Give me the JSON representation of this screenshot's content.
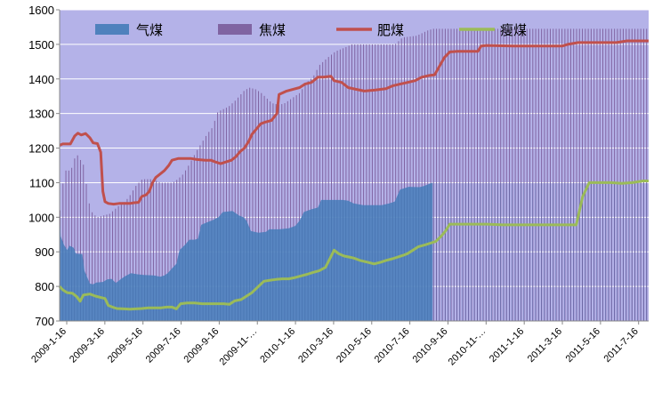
{
  "chart_data": {
    "type": "area",
    "title": "",
    "xlabel": "",
    "ylabel": "",
    "ylim": [
      700,
      1600
    ],
    "yticks": [
      700,
      800,
      900,
      1000,
      1100,
      1200,
      1300,
      1400,
      1500,
      1600
    ],
    "grid": "horizontal",
    "legend_position": "top",
    "plot_background": "#B4B2E8",
    "x_tick_labels": [
      "2009-1-16",
      "2009-3-16",
      "2009-5-16",
      "2009-7-16",
      "2009-9-16",
      "2009-11-…",
      "2010-1-16",
      "2010-3-16",
      "2010-5-16",
      "2010-7-16",
      "2010-9-16",
      "2010-11-…",
      "2011-1-16",
      "2011-3-16",
      "2011-5-16",
      "2011-7-16"
    ],
    "series": [
      {
        "name": "气煤",
        "kind": "area",
        "color": "#4F81BD",
        "points": [
          [
            0,
            1010
          ],
          [
            1,
            945
          ],
          [
            4,
            920
          ],
          [
            7,
            905
          ],
          [
            9,
            918
          ],
          [
            13,
            912
          ],
          [
            15,
            895
          ],
          [
            21,
            893
          ],
          [
            23,
            845
          ],
          [
            25,
            830
          ],
          [
            28,
            808
          ],
          [
            31,
            806
          ],
          [
            34,
            811
          ],
          [
            40,
            813
          ],
          [
            44,
            820
          ],
          [
            48,
            822
          ],
          [
            52,
            810
          ],
          [
            57,
            822
          ],
          [
            61,
            830
          ],
          [
            66,
            838
          ],
          [
            72,
            835
          ],
          [
            78,
            833
          ],
          [
            87,
            832
          ],
          [
            93,
            828
          ],
          [
            97,
            832
          ],
          [
            100,
            838
          ],
          [
            104,
            852
          ],
          [
            108,
            865
          ],
          [
            111,
            905
          ],
          [
            116,
            920
          ],
          [
            120,
            935
          ],
          [
            125,
            935
          ],
          [
            128,
            938
          ],
          [
            131,
            978
          ],
          [
            136,
            985
          ],
          [
            142,
            992
          ],
          [
            147,
            1000
          ],
          [
            151,
            1015
          ],
          [
            160,
            1018
          ],
          [
            166,
            1005
          ],
          [
            170,
            1000
          ],
          [
            173,
            990
          ],
          [
            177,
            960
          ],
          [
            184,
            955
          ],
          [
            191,
            958
          ],
          [
            194,
            965
          ],
          [
            203,
            965
          ],
          [
            212,
            968
          ],
          [
            218,
            975
          ],
          [
            222,
            990
          ],
          [
            226,
            1015
          ],
          [
            232,
            1022
          ],
          [
            239,
            1028
          ],
          [
            242,
            1050
          ],
          [
            249,
            1050
          ],
          [
            262,
            1050
          ],
          [
            267,
            1048
          ],
          [
            272,
            1040
          ],
          [
            281,
            1035
          ],
          [
            289,
            1035
          ],
          [
            298,
            1035
          ],
          [
            305,
            1040
          ],
          [
            310,
            1045
          ],
          [
            315,
            1080
          ],
          [
            323,
            1088
          ],
          [
            333,
            1087
          ],
          [
            337,
            1090
          ],
          [
            345,
            1100
          ]
        ]
      },
      {
        "name": "焦煤",
        "kind": "bars",
        "color": "#8064A2",
        "points": [
          [
            0,
            1020
          ],
          [
            4,
            1135
          ],
          [
            10,
            1135
          ],
          [
            14,
            1175
          ],
          [
            16,
            1180
          ],
          [
            22,
            1150
          ],
          [
            25,
            1080
          ],
          [
            28,
            1020
          ],
          [
            34,
            1000
          ],
          [
            46,
            1010
          ],
          [
            55,
            1035
          ],
          [
            60,
            1045
          ],
          [
            64,
            1060
          ],
          [
            70,
            1090
          ],
          [
            76,
            1110
          ],
          [
            86,
            1110
          ],
          [
            93,
            1100
          ],
          [
            98,
            1100
          ],
          [
            104,
            1100
          ],
          [
            109,
            1110
          ],
          [
            114,
            1125
          ],
          [
            119,
            1150
          ],
          [
            126,
            1190
          ],
          [
            131,
            1215
          ],
          [
            136,
            1240
          ],
          [
            141,
            1260
          ],
          [
            146,
            1305
          ],
          [
            156,
            1320
          ],
          [
            163,
            1340
          ],
          [
            170,
            1365
          ],
          [
            175,
            1375
          ],
          [
            181,
            1370
          ],
          [
            186,
            1360
          ],
          [
            196,
            1330
          ],
          [
            203,
            1325
          ],
          [
            208,
            1330
          ],
          [
            215,
            1345
          ],
          [
            222,
            1360
          ],
          [
            228,
            1390
          ],
          [
            234,
            1405
          ],
          [
            240,
            1440
          ],
          [
            247,
            1460
          ],
          [
            255,
            1480
          ],
          [
            263,
            1490
          ],
          [
            270,
            1500
          ],
          [
            279,
            1500
          ],
          [
            299,
            1500
          ],
          [
            310,
            1500
          ],
          [
            317,
            1520
          ],
          [
            330,
            1525
          ],
          [
            340,
            1540
          ],
          [
            345,
            1545
          ]
        ]
      },
      {
        "name": "肥煤",
        "kind": "line",
        "color": "#C0504D",
        "points": [
          [
            0,
            1208
          ],
          [
            3,
            1212
          ],
          [
            10,
            1212
          ],
          [
            14,
            1235
          ],
          [
            17,
            1243
          ],
          [
            20,
            1238
          ],
          [
            24,
            1242
          ],
          [
            28,
            1230
          ],
          [
            31,
            1215
          ],
          [
            35,
            1213
          ],
          [
            38,
            1188
          ],
          [
            40,
            1075
          ],
          [
            42,
            1045
          ],
          [
            45,
            1040
          ],
          [
            50,
            1038
          ],
          [
            55,
            1040
          ],
          [
            61,
            1040
          ],
          [
            65,
            1040
          ],
          [
            69,
            1042
          ],
          [
            73,
            1043
          ],
          [
            76,
            1060
          ],
          [
            80,
            1065
          ],
          [
            83,
            1075
          ],
          [
            86,
            1100
          ],
          [
            89,
            1115
          ],
          [
            93,
            1125
          ],
          [
            97,
            1135
          ],
          [
            101,
            1150
          ],
          [
            104,
            1165
          ],
          [
            110,
            1170
          ],
          [
            121,
            1170
          ],
          [
            127,
            1167
          ],
          [
            135,
            1165
          ],
          [
            140,
            1165
          ],
          [
            144,
            1160
          ],
          [
            149,
            1155
          ],
          [
            154,
            1160
          ],
          [
            159,
            1165
          ],
          [
            163,
            1175
          ],
          [
            167,
            1190
          ],
          [
            171,
            1200
          ],
          [
            175,
            1220
          ],
          [
            178,
            1240
          ],
          [
            182,
            1255
          ],
          [
            186,
            1270
          ],
          [
            190,
            1275
          ],
          [
            196,
            1280
          ],
          [
            201,
            1300
          ],
          [
            203,
            1355
          ],
          [
            210,
            1365
          ],
          [
            216,
            1370
          ],
          [
            222,
            1375
          ],
          [
            227,
            1385
          ],
          [
            233,
            1390
          ],
          [
            239,
            1405
          ],
          [
            244,
            1405
          ],
          [
            251,
            1408
          ],
          [
            254,
            1395
          ],
          [
            261,
            1390
          ],
          [
            267,
            1375
          ],
          [
            274,
            1370
          ],
          [
            282,
            1365
          ],
          [
            292,
            1368
          ],
          [
            302,
            1372
          ],
          [
            308,
            1380
          ],
          [
            315,
            1385
          ],
          [
            322,
            1390
          ],
          [
            329,
            1395
          ],
          [
            335,
            1405
          ],
          [
            342,
            1410
          ],
          [
            347,
            1412
          ],
          [
            352,
            1440
          ],
          [
            356,
            1462
          ],
          [
            361,
            1478
          ],
          [
            368,
            1480
          ],
          [
            380,
            1480
          ],
          [
            387,
            1480
          ],
          [
            390,
            1495
          ],
          [
            395,
            1497
          ],
          [
            420,
            1495
          ],
          [
            440,
            1495
          ],
          [
            455,
            1495
          ],
          [
            465,
            1495
          ],
          [
            470,
            1500
          ],
          [
            480,
            1505
          ],
          [
            495,
            1505
          ],
          [
            505,
            1505
          ],
          [
            515,
            1505
          ],
          [
            525,
            1510
          ],
          [
            535,
            1510
          ],
          [
            545,
            1510
          ]
        ]
      },
      {
        "name": "瘦煤",
        "kind": "line",
        "color": "#9BBB59",
        "points": [
          [
            0,
            800
          ],
          [
            3,
            790
          ],
          [
            7,
            782
          ],
          [
            12,
            780
          ],
          [
            16,
            770
          ],
          [
            19,
            757
          ],
          [
            22,
            775
          ],
          [
            28,
            778
          ],
          [
            33,
            772
          ],
          [
            38,
            768
          ],
          [
            42,
            765
          ],
          [
            45,
            745
          ],
          [
            49,
            740
          ],
          [
            53,
            736
          ],
          [
            60,
            735
          ],
          [
            65,
            734
          ],
          [
            70,
            735
          ],
          [
            76,
            736
          ],
          [
            82,
            738
          ],
          [
            88,
            738
          ],
          [
            94,
            738
          ],
          [
            99,
            740
          ],
          [
            104,
            740
          ],
          [
            108,
            735
          ],
          [
            112,
            750
          ],
          [
            118,
            752
          ],
          [
            125,
            752
          ],
          [
            132,
            750
          ],
          [
            140,
            750
          ],
          [
            146,
            750
          ],
          [
            152,
            750
          ],
          [
            157,
            748
          ],
          [
            162,
            758
          ],
          [
            168,
            762
          ],
          [
            173,
            772
          ],
          [
            178,
            782
          ],
          [
            184,
            800
          ],
          [
            189,
            815
          ],
          [
            195,
            818
          ],
          [
            200,
            820
          ],
          [
            206,
            822
          ],
          [
            212,
            822
          ],
          [
            217,
            825
          ],
          [
            223,
            830
          ],
          [
            229,
            835
          ],
          [
            234,
            840
          ],
          [
            240,
            845
          ],
          [
            246,
            855
          ],
          [
            250,
            880
          ],
          [
            254,
            905
          ],
          [
            258,
            895
          ],
          [
            263,
            888
          ],
          [
            268,
            885
          ],
          [
            272,
            882
          ],
          [
            278,
            875
          ],
          [
            285,
            870
          ],
          [
            291,
            865
          ],
          [
            297,
            870
          ],
          [
            302,
            875
          ],
          [
            308,
            880
          ],
          [
            313,
            885
          ],
          [
            318,
            890
          ],
          [
            322,
            895
          ],
          [
            327,
            905
          ],
          [
            332,
            915
          ],
          [
            338,
            920
          ],
          [
            343,
            925
          ],
          [
            348,
            930
          ],
          [
            353,
            945
          ],
          [
            357,
            960
          ],
          [
            361,
            980
          ],
          [
            368,
            980
          ],
          [
            380,
            980
          ],
          [
            395,
            980
          ],
          [
            410,
            978
          ],
          [
            425,
            978
          ],
          [
            440,
            978
          ],
          [
            455,
            978
          ],
          [
            470,
            978
          ],
          [
            478,
            978
          ],
          [
            484,
            1060
          ],
          [
            490,
            1100
          ],
          [
            500,
            1100
          ],
          [
            510,
            1100
          ],
          [
            520,
            1098
          ],
          [
            530,
            1100
          ],
          [
            540,
            1105
          ],
          [
            545,
            1105
          ]
        ]
      }
    ]
  }
}
